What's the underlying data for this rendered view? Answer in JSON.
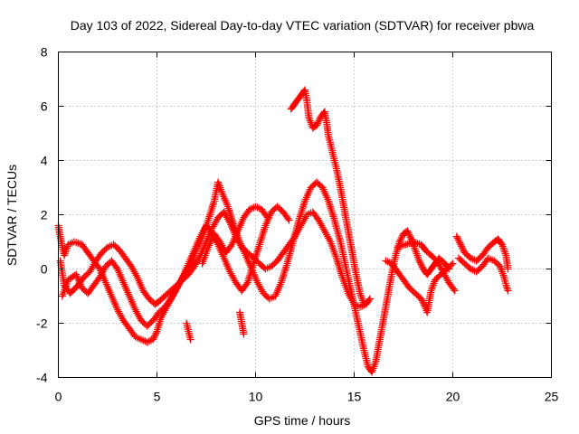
{
  "chart_data": {
    "type": "scatter",
    "title": "Day 103 of 2022, Sidereal Day-to-day VTEC variation (SDTVAR) for receiver pbwa",
    "xlabel": "GPS time / hours",
    "ylabel": "SDTVAR / TECUs",
    "xlim": [
      0,
      25
    ],
    "ylim": [
      -4,
      8
    ],
    "xticks": [
      "0",
      "5",
      "10",
      "15",
      "20",
      "25"
    ],
    "yticks": [
      "-4",
      "-2",
      "0",
      "2",
      "4",
      "6",
      "8"
    ],
    "grid": true,
    "marker": "+",
    "color": "#ff0000",
    "series": [
      {
        "points": [
          [
            0.0,
            1.6
          ],
          [
            0.1,
            1.2
          ],
          [
            0.2,
            0.8
          ],
          [
            0.3,
            0.5
          ],
          [
            0.5,
            0.9
          ],
          [
            0.8,
            1.0
          ],
          [
            1.2,
            0.9
          ],
          [
            1.5,
            0.6
          ],
          [
            1.8,
            0.3
          ],
          [
            2.1,
            0.0
          ],
          [
            2.4,
            -0.5
          ],
          [
            2.7,
            -1.0
          ],
          [
            3.0,
            -1.5
          ],
          [
            3.3,
            -1.9
          ],
          [
            3.6,
            -2.2
          ],
          [
            3.9,
            -2.5
          ],
          [
            4.2,
            -2.6
          ],
          [
            4.5,
            -2.7
          ],
          [
            4.8,
            -2.6
          ],
          [
            5.0,
            -2.3
          ],
          [
            5.2,
            -1.8
          ],
          [
            5.5,
            -1.4
          ],
          [
            5.8,
            -1.0
          ],
          [
            6.1,
            -0.6
          ],
          [
            6.4,
            -0.2
          ],
          [
            6.7,
            0.2
          ],
          [
            7.0,
            0.7
          ],
          [
            7.3,
            1.2
          ],
          [
            7.6,
            1.8
          ],
          [
            7.9,
            2.5
          ],
          [
            8.1,
            3.2
          ],
          [
            8.3,
            2.8
          ],
          [
            8.6,
            2.3
          ],
          [
            8.9,
            1.6
          ],
          [
            9.2,
            1.0
          ],
          [
            9.5,
            0.5
          ],
          [
            9.8,
            0.0
          ],
          [
            10.1,
            -0.5
          ],
          [
            10.4,
            -0.9
          ],
          [
            10.7,
            -1.1
          ],
          [
            11.0,
            -1.0
          ],
          [
            11.3,
            -0.5
          ],
          [
            11.6,
            0.2
          ],
          [
            11.9,
            1.0
          ],
          [
            12.2,
            1.8
          ],
          [
            12.5,
            2.5
          ],
          [
            12.8,
            3.0
          ],
          [
            13.1,
            3.2
          ],
          [
            13.4,
            3.0
          ],
          [
            13.7,
            2.5
          ],
          [
            14.0,
            1.8
          ],
          [
            14.3,
            1.0
          ],
          [
            14.6,
            0.0
          ],
          [
            14.9,
            -1.0
          ],
          [
            15.2,
            -2.0
          ],
          [
            15.5,
            -3.0
          ],
          [
            15.7,
            -3.6
          ],
          [
            15.9,
            -3.8
          ],
          [
            16.1,
            -3.4
          ],
          [
            16.3,
            -2.6
          ],
          [
            16.5,
            -1.8
          ],
          [
            16.7,
            -1.0
          ],
          [
            16.9,
            -0.2
          ],
          [
            17.1,
            0.5
          ],
          [
            17.3,
            1.0
          ],
          [
            17.5,
            1.3
          ],
          [
            17.7,
            1.4
          ],
          [
            17.9,
            1.1
          ],
          [
            18.1,
            0.7
          ],
          [
            18.3,
            0.3
          ],
          [
            18.5,
            0.0
          ],
          [
            18.7,
            -0.2
          ],
          [
            18.9,
            0.0
          ],
          [
            19.1,
            0.2
          ],
          [
            19.3,
            0.4
          ],
          [
            19.6,
            0.2
          ],
          [
            19.8,
            0.0
          ]
        ]
      },
      {
        "points": [
          [
            0.1,
            0.3
          ],
          [
            0.3,
            -0.6
          ],
          [
            0.6,
            -0.9
          ],
          [
            1.0,
            -0.6
          ],
          [
            1.3,
            -0.3
          ],
          [
            1.6,
            -0.1
          ],
          [
            1.9,
            0.3
          ],
          [
            2.2,
            0.6
          ],
          [
            2.5,
            0.8
          ],
          [
            2.8,
            0.9
          ],
          [
            3.1,
            0.7
          ],
          [
            3.4,
            0.4
          ],
          [
            3.7,
            0.1
          ],
          [
            4.0,
            -0.3
          ],
          [
            4.3,
            -0.8
          ],
          [
            4.6,
            -1.1
          ],
          [
            4.9,
            -1.3
          ],
          [
            5.1,
            -1.2
          ],
          [
            5.4,
            -1.0
          ],
          [
            5.7,
            -0.8
          ],
          [
            6.0,
            -0.6
          ],
          [
            6.3,
            -0.4
          ],
          [
            6.6,
            -0.2
          ],
          [
            6.9,
            0.1
          ],
          [
            7.2,
            0.5
          ],
          [
            7.5,
            1.0
          ],
          [
            7.8,
            1.5
          ],
          [
            8.1,
            1.9
          ],
          [
            8.4,
            2.1
          ],
          [
            8.7,
            1.7
          ],
          [
            9.0,
            1.2
          ],
          [
            9.3,
            0.8
          ],
          [
            9.6,
            0.6
          ],
          [
            9.9,
            0.4
          ],
          [
            10.2,
            0.2
          ],
          [
            10.5,
            0.0
          ],
          [
            10.8,
            0.1
          ],
          [
            11.1,
            0.3
          ],
          [
            11.4,
            0.6
          ],
          [
            11.7,
            0.9
          ],
          [
            12.0,
            1.2
          ],
          [
            12.3,
            1.6
          ],
          [
            12.6,
            2.0
          ],
          [
            12.9,
            2.1
          ],
          [
            13.2,
            1.8
          ],
          [
            13.5,
            1.4
          ],
          [
            13.8,
            1.0
          ],
          [
            14.1,
            0.4
          ],
          [
            14.4,
            -0.3
          ],
          [
            14.7,
            -0.9
          ],
          [
            15.0,
            -1.3
          ],
          [
            15.3,
            -1.4
          ],
          [
            15.6,
            -1.3
          ],
          [
            15.8,
            -1.1
          ]
        ]
      },
      {
        "points": [
          [
            0.2,
            -1.0
          ],
          [
            0.5,
            -0.4
          ],
          [
            0.9,
            -0.2
          ],
          [
            1.2,
            -0.7
          ],
          [
            1.5,
            -0.9
          ],
          [
            1.8,
            -0.6
          ],
          [
            2.1,
            -0.3
          ],
          [
            2.4,
            0.1
          ],
          [
            2.7,
            0.3
          ],
          [
            3.0,
            0.0
          ],
          [
            3.3,
            -0.5
          ],
          [
            3.6,
            -1.0
          ],
          [
            3.9,
            -1.5
          ],
          [
            4.2,
            -1.9
          ],
          [
            4.5,
            -2.1
          ],
          [
            4.8,
            -1.9
          ],
          [
            5.1,
            -1.6
          ],
          [
            5.4,
            -1.4
          ],
          [
            5.7,
            -1.1
          ],
          [
            6.0,
            -0.7
          ],
          [
            6.3,
            -0.3
          ],
          [
            6.6,
            0.2
          ],
          [
            6.9,
            0.7
          ],
          [
            7.2,
            1.2
          ],
          [
            7.5,
            1.6
          ],
          [
            7.8,
            1.3
          ],
          [
            8.1,
            0.9
          ],
          [
            8.4,
            0.4
          ],
          [
            8.7,
            -0.1
          ],
          [
            9.0,
            -0.5
          ],
          [
            9.3,
            -0.8
          ],
          [
            9.6,
            -0.5
          ],
          [
            9.9,
            0.2
          ],
          [
            10.2,
            0.9
          ],
          [
            10.5,
            1.6
          ],
          [
            10.8,
            2.1
          ],
          [
            11.1,
            2.3
          ],
          [
            11.4,
            2.1
          ],
          [
            11.7,
            1.8
          ]
        ]
      },
      {
        "points": [
          [
            7.3,
            0.2
          ],
          [
            7.6,
            0.8
          ],
          [
            7.9,
            1.3
          ],
          [
            8.2,
            1.0
          ],
          [
            8.5,
            0.6
          ],
          [
            8.8,
            0.9
          ],
          [
            9.1,
            1.4
          ],
          [
            9.4,
            1.9
          ],
          [
            9.7,
            2.2
          ],
          [
            10.0,
            2.3
          ],
          [
            10.3,
            2.2
          ],
          [
            10.6,
            1.9
          ]
        ]
      },
      {
        "points": [
          [
            6.5,
            -2.0
          ],
          [
            6.6,
            -2.3
          ],
          [
            6.7,
            -2.6
          ]
        ]
      },
      {
        "points": [
          [
            9.2,
            -1.6
          ],
          [
            9.3,
            -2.0
          ],
          [
            9.4,
            -2.4
          ]
        ]
      },
      {
        "points": [
          [
            11.8,
            5.9
          ],
          [
            12.0,
            6.1
          ],
          [
            12.2,
            6.3
          ],
          [
            12.4,
            6.5
          ],
          [
            12.5,
            6.6
          ],
          [
            12.6,
            6.2
          ],
          [
            12.7,
            5.6
          ],
          [
            12.9,
            5.2
          ],
          [
            13.1,
            5.3
          ],
          [
            13.3,
            5.6
          ],
          [
            13.5,
            5.8
          ],
          [
            13.6,
            5.4
          ],
          [
            13.7,
            4.9
          ],
          [
            13.9,
            4.3
          ],
          [
            14.1,
            3.7
          ],
          [
            14.3,
            3.0
          ],
          [
            14.5,
            2.2
          ],
          [
            14.7,
            1.4
          ],
          [
            14.9,
            0.6
          ],
          [
            15.1,
            -0.2
          ],
          [
            15.3,
            -0.9
          ],
          [
            15.5,
            -1.3
          ]
        ]
      },
      {
        "points": [
          [
            16.6,
            0.3
          ],
          [
            16.9,
            0.2
          ],
          [
            17.2,
            -0.1
          ],
          [
            17.5,
            -0.4
          ],
          [
            17.8,
            -0.7
          ],
          [
            18.1,
            -0.9
          ],
          [
            18.4,
            -1.1
          ],
          [
            18.6,
            -1.4
          ],
          [
            18.7,
            -1.6
          ],
          [
            18.9,
            -0.8
          ],
          [
            19.1,
            -0.4
          ],
          [
            19.4,
            -0.2
          ],
          [
            19.7,
            0.0
          ],
          [
            20.0,
            0.2
          ]
        ]
      },
      {
        "points": [
          [
            17.2,
            0.8
          ],
          [
            17.6,
            0.9
          ],
          [
            18.0,
            1.0
          ],
          [
            18.4,
            0.9
          ],
          [
            18.6,
            0.7
          ],
          [
            18.9,
            0.5
          ],
          [
            19.2,
            0.3
          ],
          [
            19.5,
            -0.1
          ],
          [
            19.8,
            -0.5
          ],
          [
            20.1,
            -0.8
          ]
        ]
      },
      {
        "points": [
          [
            20.2,
            1.2
          ],
          [
            20.4,
            0.9
          ],
          [
            20.6,
            0.6
          ],
          [
            20.9,
            0.4
          ],
          [
            21.2,
            0.3
          ],
          [
            21.5,
            0.5
          ],
          [
            21.8,
            0.8
          ],
          [
            22.1,
            1.0
          ],
          [
            22.3,
            1.1
          ],
          [
            22.5,
            0.9
          ],
          [
            22.7,
            0.5
          ],
          [
            22.8,
            0.0
          ]
        ]
      },
      {
        "points": [
          [
            20.3,
            0.4
          ],
          [
            20.6,
            0.2
          ],
          [
            20.9,
            0.0
          ],
          [
            21.2,
            -0.1
          ],
          [
            21.5,
            0.1
          ],
          [
            21.8,
            0.4
          ],
          [
            22.1,
            0.3
          ],
          [
            22.4,
            0.1
          ],
          [
            22.6,
            -0.3
          ],
          [
            22.7,
            -0.6
          ],
          [
            22.8,
            -0.8
          ]
        ]
      }
    ]
  }
}
